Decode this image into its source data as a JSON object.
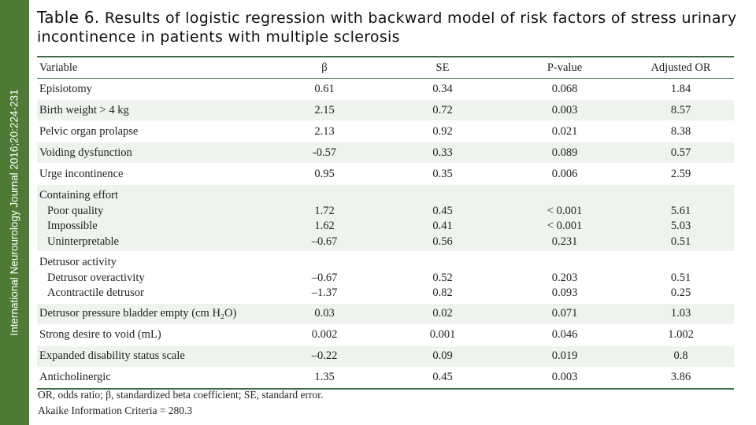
{
  "sidebar_text": "International Neurourology Journal 2016;20:224-231",
  "title": {
    "label": "Table 6.",
    "text": " Results of logistic regression with backward model of risk factors of stress urinary incontinence in patients with multiple sclerosis"
  },
  "table": {
    "headers": [
      "Variable",
      "β",
      "SE",
      "P-value",
      "Adjusted OR"
    ],
    "rows": [
      {
        "variable": "Episiotomy",
        "beta": "0.61",
        "se": "0.34",
        "p": "0.068",
        "or": "1.84"
      },
      {
        "variable": "Birth weight > 4 kg",
        "beta": "2.15",
        "se": "0.72",
        "p": "0.003",
        "or": "8.57"
      },
      {
        "variable": "Pelvic organ prolapse",
        "beta": "2.13",
        "se": "0.92",
        "p": "0.021",
        "or": "8.38"
      },
      {
        "variable": "Voiding dysfunction",
        "beta": "-0.57",
        "se": "0.33",
        "p": "0.089",
        "or": "0.57"
      },
      {
        "variable": "Urge incontinence",
        "beta": "0.95",
        "se": "0.35",
        "p": "0.006",
        "or": "2.59"
      }
    ],
    "groups": [
      {
        "label": "Containing effort",
        "items": [
          {
            "variable": "Poor quality",
            "beta": "1.72",
            "se": "0.45",
            "p": "< 0.001",
            "or": "5.61"
          },
          {
            "variable": "Impossible",
            "beta": "1.62",
            "se": "0.41",
            "p": "< 0.001",
            "or": "5.03"
          },
          {
            "variable": "Uninterpretable",
            "beta": "–0.67",
            "se": "0.56",
            "p": "0.231",
            "or": "0.51"
          }
        ]
      },
      {
        "label": "Detrusor activity",
        "items": [
          {
            "variable": "Detrusor overactivity",
            "beta": "–0.67",
            "se": "0.52",
            "p": "0.203",
            "or": "0.51"
          },
          {
            "variable": "Acontractile detrusor",
            "beta": "–1.37",
            "se": "0.82",
            "p": "0.093",
            "or": "0.25"
          }
        ]
      }
    ],
    "rows2": [
      {
        "variable": "Detrusor pressure bladder empty (cm H₂O)",
        "beta": "0.03",
        "se": "0.02",
        "p": "0.071",
        "or": "1.03"
      },
      {
        "variable": "Strong desire to void (mL)",
        "beta": "0.002",
        "se": "0.001",
        "p": "0.046",
        "or": "1.002"
      },
      {
        "variable": "Expanded disability status scale",
        "beta": "–0.22",
        "se": "0.09",
        "p": "0.019",
        "or": "0.8"
      },
      {
        "variable": "Anticholinergic",
        "beta": "1.35",
        "se": "0.45",
        "p": "0.003",
        "or": "3.86"
      }
    ]
  },
  "footnotes": [
    "OR, odds ratio; β, standardized beta coefficient; SE, standard error.",
    "Akaike Information Criteria = 280.3"
  ],
  "colors": {
    "sidebar": "#4f7a35",
    "rule": "#3c6b45",
    "row_shade": "#eef3ee"
  }
}
